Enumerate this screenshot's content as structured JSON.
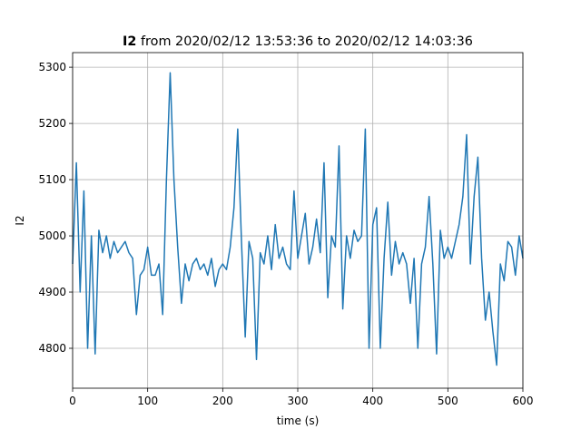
{
  "chart_data": {
    "type": "line",
    "title_parts": [
      "I2",
      "from 2020/02/12 13:53:36 to 2020/02/12 14:03:36"
    ],
    "x_label": "time (s)",
    "y_label": "I2",
    "color": "#1f77b4",
    "grid": true,
    "xlim": [
      0,
      600
    ],
    "xticks": [
      0,
      100,
      200,
      300,
      400,
      500,
      600
    ],
    "ylim": [
      4729,
      5326
    ],
    "yticks": [
      4800,
      4900,
      5000,
      5100,
      5200,
      5300
    ],
    "x": [
      0,
      5,
      10,
      15,
      20,
      25,
      30,
      35,
      40,
      45,
      50,
      55,
      60,
      65,
      70,
      75,
      80,
      85,
      90,
      95,
      100,
      105,
      110,
      115,
      120,
      125,
      130,
      135,
      140,
      145,
      150,
      155,
      160,
      165,
      170,
      175,
      180,
      185,
      190,
      195,
      200,
      205,
      210,
      215,
      220,
      225,
      230,
      235,
      240,
      245,
      250,
      255,
      260,
      265,
      270,
      275,
      280,
      285,
      290,
      295,
      300,
      305,
      310,
      315,
      320,
      325,
      330,
      335,
      340,
      345,
      350,
      355,
      360,
      365,
      370,
      375,
      380,
      385,
      390,
      395,
      400,
      405,
      410,
      415,
      420,
      425,
      430,
      435,
      440,
      445,
      450,
      455,
      460,
      465,
      470,
      475,
      480,
      485,
      490,
      495,
      500,
      505,
      510,
      515,
      520,
      525,
      530,
      535,
      540,
      545,
      550,
      555,
      560,
      565,
      570,
      575,
      580,
      585,
      590,
      595,
      600
    ],
    "values": [
      4950,
      5130,
      4900,
      5080,
      4800,
      5000,
      4790,
      5010,
      4970,
      5000,
      4960,
      4990,
      4970,
      4980,
      4990,
      4970,
      4960,
      4860,
      4930,
      4940,
      4980,
      4930,
      4930,
      4950,
      4860,
      5100,
      5290,
      5100,
      4980,
      4880,
      4950,
      4920,
      4950,
      4960,
      4940,
      4950,
      4930,
      4960,
      4910,
      4940,
      4950,
      4940,
      4980,
      5050,
      5190,
      4990,
      4820,
      4990,
      4960,
      4780,
      4970,
      4950,
      5000,
      4940,
      5020,
      4960,
      4980,
      4950,
      4940,
      5080,
      4960,
      5000,
      5040,
      4950,
      4980,
      5030,
      4970,
      5130,
      4890,
      5000,
      4980,
      5160,
      4870,
      5000,
      4960,
      5010,
      4990,
      5000,
      5190,
      4800,
      5020,
      5050,
      4800,
      4960,
      5060,
      4930,
      4990,
      4950,
      4970,
      4950,
      4880,
      4960,
      4800,
      4950,
      4980,
      5070,
      4950,
      4790,
      5010,
      4960,
      4980,
      4960,
      4990,
      5020,
      5070,
      5180,
      4950,
      5070,
      5140,
      4960,
      4850,
      4900,
      4830,
      4770,
      4950,
      4920,
      4990,
      4980,
      4930,
      5000,
      4960
    ]
  }
}
